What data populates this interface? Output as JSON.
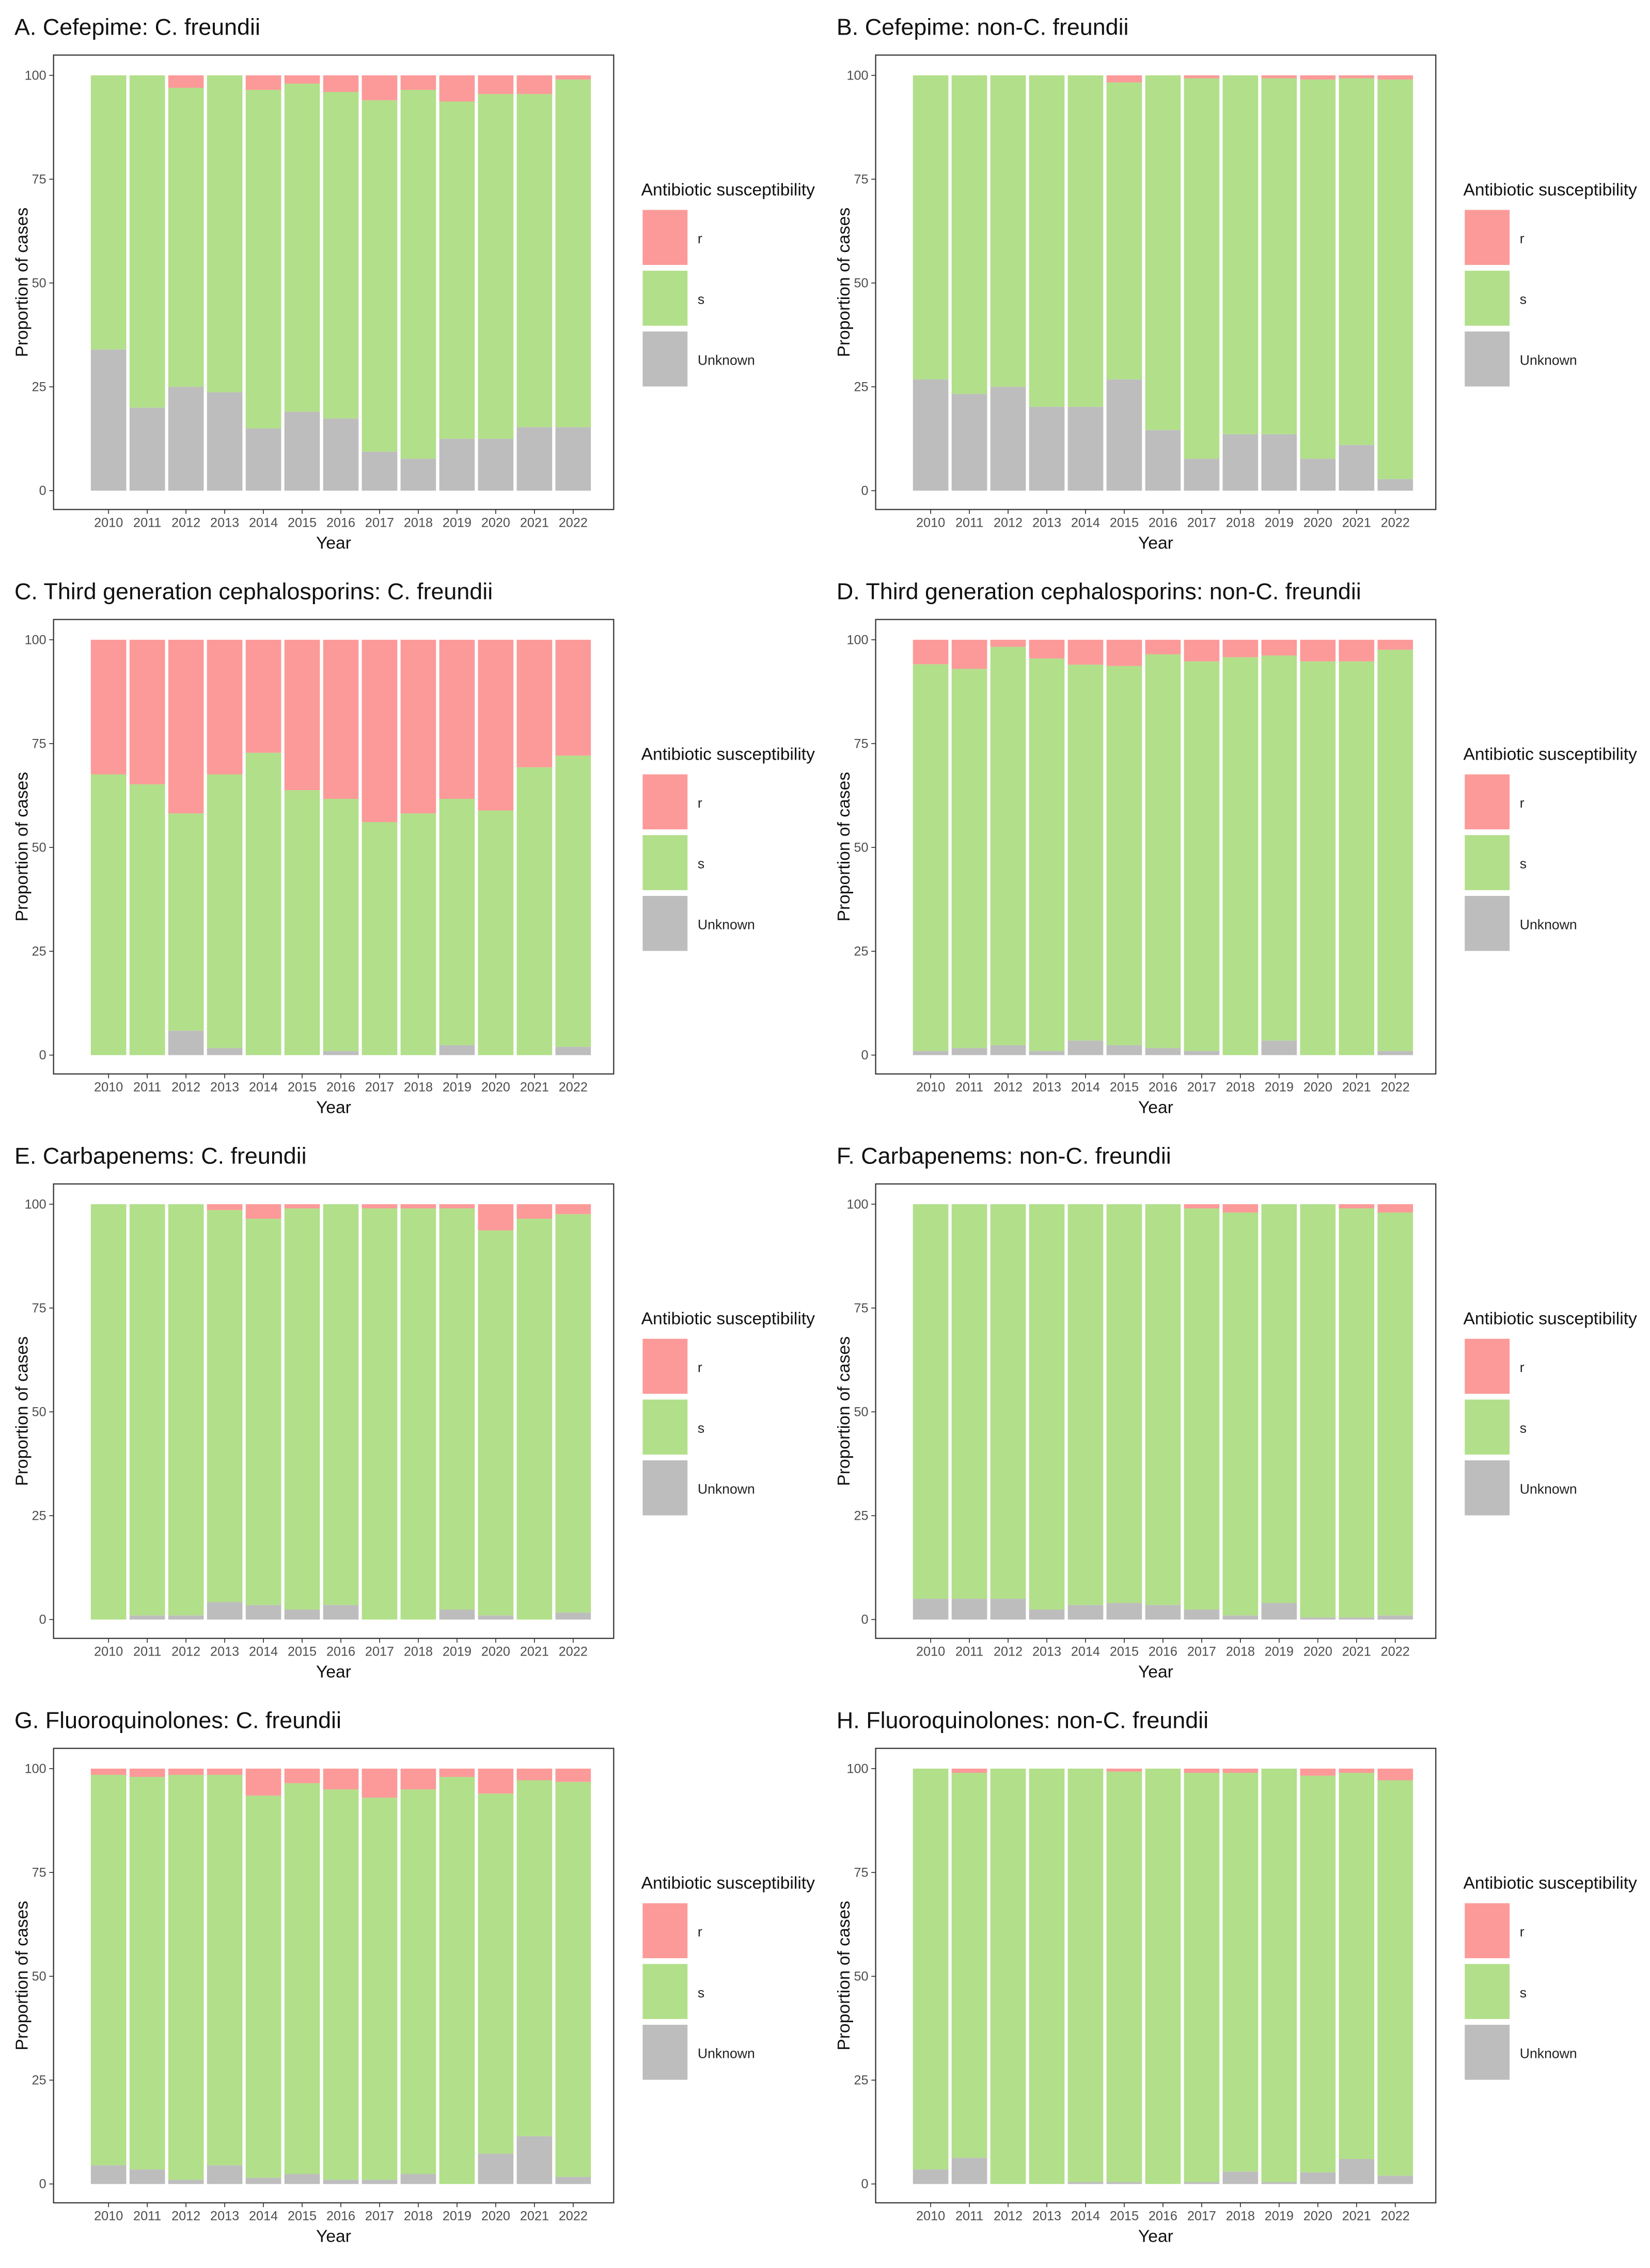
{
  "colors": {
    "r": "#FB9A99",
    "s": "#B2DF8A",
    "Unknown": "#BDBDBD",
    "frame": "#333333"
  },
  "chart_data": [
    {
      "type": "bar",
      "stacked": true,
      "title": "A. Cefepime: C. freundii",
      "xlabel": "Year",
      "ylabel": "Proportion of cases",
      "ylim": [
        0,
        100
      ],
      "yticks": [
        "0",
        "25",
        "50",
        "75",
        "100"
      ],
      "categories": [
        "2010",
        "2011",
        "2012",
        "2013",
        "2014",
        "2015",
        "2016",
        "2017",
        "2018",
        "2019",
        "2020",
        "2021",
        "2022"
      ],
      "legend": {
        "title": "Antibiotic susceptibility",
        "entries": [
          "r",
          "s",
          "Unknown"
        ],
        "placement": "right"
      },
      "series": [
        {
          "name": "Unknown",
          "values": [
            34,
            20,
            25,
            23.7,
            15,
            19,
            17.4,
            9.4,
            7.7,
            12.5,
            12.5,
            15.3,
            15.3
          ]
        },
        {
          "name": "s",
          "values": [
            66,
            80,
            72,
            76.3,
            81.5,
            79,
            78.6,
            84.6,
            88.8,
            81.2,
            83,
            80.2,
            83.7
          ]
        },
        {
          "name": "r",
          "values": [
            0,
            0,
            3,
            0,
            3.5,
            2,
            4,
            6,
            3.5,
            6.3,
            4.5,
            4.5,
            1
          ]
        }
      ]
    },
    {
      "type": "bar",
      "stacked": true,
      "title": "B. Cefepime: non-C. freundii",
      "xlabel": "Year",
      "ylabel": "Proportion of cases",
      "ylim": [
        0,
        100
      ],
      "yticks": [
        "0",
        "25",
        "50",
        "75",
        "100"
      ],
      "categories": [
        "2010",
        "2011",
        "2012",
        "2013",
        "2014",
        "2015",
        "2016",
        "2017",
        "2018",
        "2019",
        "2020",
        "2021",
        "2022"
      ],
      "legend": {
        "title": "Antibiotic susceptibility",
        "entries": [
          "r",
          "s",
          "Unknown"
        ],
        "placement": "right"
      },
      "series": [
        {
          "name": "Unknown",
          "values": [
            26.8,
            23.3,
            25,
            20.2,
            20.2,
            26.8,
            14.6,
            7.7,
            13.6,
            13.6,
            7.7,
            11,
            2.8
          ]
        },
        {
          "name": "s",
          "values": [
            73.2,
            76.7,
            75,
            79.8,
            79.8,
            71.5,
            85.4,
            91.6,
            86.4,
            85.7,
            91.3,
            88.3,
            96.2
          ]
        },
        {
          "name": "r",
          "values": [
            0,
            0,
            0,
            0,
            0,
            1.7,
            0,
            0.7,
            0,
            0.7,
            1,
            0.7,
            1
          ]
        }
      ]
    },
    {
      "type": "bar",
      "stacked": true,
      "title": "C. Third generation cephalosporins: C. freundii",
      "xlabel": "Year",
      "ylabel": "Proportion of cases",
      "ylim": [
        0,
        100
      ],
      "yticks": [
        "0",
        "25",
        "50",
        "75",
        "100"
      ],
      "categories": [
        "2010",
        "2011",
        "2012",
        "2013",
        "2014",
        "2015",
        "2016",
        "2017",
        "2018",
        "2019",
        "2020",
        "2021",
        "2022"
      ],
      "legend": {
        "title": "Antibiotic susceptibility",
        "entries": [
          "r",
          "s",
          "Unknown"
        ],
        "placement": "right"
      },
      "series": [
        {
          "name": "Unknown",
          "values": [
            0,
            0,
            5.9,
            1.7,
            0,
            0,
            1,
            0,
            0,
            2.4,
            0,
            0,
            2
          ]
        },
        {
          "name": "s",
          "values": [
            67.6,
            65.2,
            52.3,
            65.9,
            72.8,
            63.8,
            60.7,
            56.1,
            58.2,
            59.3,
            58.9,
            69.3,
            70.1
          ]
        },
        {
          "name": "r",
          "values": [
            32.4,
            34.8,
            41.8,
            32.4,
            27.2,
            36.2,
            38.3,
            43.9,
            41.8,
            38.3,
            41.1,
            30.7,
            27.9
          ]
        }
      ]
    },
    {
      "type": "bar",
      "stacked": true,
      "title": "D. Third generation cephalosporins: non-C. freundii",
      "xlabel": "Year",
      "ylabel": "Proportion of cases",
      "ylim": [
        0,
        100
      ],
      "yticks": [
        "0",
        "25",
        "50",
        "75",
        "100"
      ],
      "categories": [
        "2010",
        "2011",
        "2012",
        "2013",
        "2014",
        "2015",
        "2016",
        "2017",
        "2018",
        "2019",
        "2020",
        "2021",
        "2022"
      ],
      "legend": {
        "title": "Antibiotic susceptibility",
        "entries": [
          "r",
          "s",
          "Unknown"
        ],
        "placement": "right"
      },
      "series": [
        {
          "name": "Unknown",
          "values": [
            1,
            1.7,
            2.4,
            1,
            3.5,
            2.4,
            1.7,
            1,
            0,
            3.5,
            0,
            0,
            1
          ]
        },
        {
          "name": "s",
          "values": [
            93.1,
            91.3,
            95.9,
            94.5,
            90.5,
            91.3,
            94.8,
            93.8,
            95.8,
            92.7,
            94.8,
            94.8,
            96.6
          ]
        },
        {
          "name": "r",
          "values": [
            5.9,
            7,
            1.7,
            4.5,
            6,
            6.3,
            3.5,
            5.2,
            4.2,
            3.8,
            5.2,
            5.2,
            2.4
          ]
        }
      ]
    },
    {
      "type": "bar",
      "stacked": true,
      "title": "E. Carbapenems: C. freundii",
      "xlabel": "Year",
      "ylabel": "Proportion of cases",
      "ylim": [
        0,
        100
      ],
      "yticks": [
        "0",
        "25",
        "50",
        "75",
        "100"
      ],
      "categories": [
        "2010",
        "2011",
        "2012",
        "2013",
        "2014",
        "2015",
        "2016",
        "2017",
        "2018",
        "2019",
        "2020",
        "2021",
        "2022"
      ],
      "legend": {
        "title": "Antibiotic susceptibility",
        "entries": [
          "r",
          "s",
          "Unknown"
        ],
        "placement": "right"
      },
      "series": [
        {
          "name": "Unknown",
          "values": [
            0,
            1,
            1,
            4.2,
            3.5,
            2.4,
            3.5,
            0,
            0,
            2.4,
            1,
            0,
            1.7
          ]
        },
        {
          "name": "s",
          "values": [
            100,
            99,
            99,
            94.4,
            93,
            96.6,
            96.5,
            99,
            99,
            96.6,
            92.7,
            96.5,
            95.9
          ]
        },
        {
          "name": "r",
          "values": [
            0,
            0,
            0,
            1.4,
            3.5,
            1,
            0,
            1,
            1,
            1,
            6.3,
            3.5,
            2.4
          ]
        }
      ]
    },
    {
      "type": "bar",
      "stacked": true,
      "title": "F. Carbapenems: non-C. freundii",
      "xlabel": "Year",
      "ylabel": "Proportion of cases",
      "ylim": [
        0,
        100
      ],
      "yticks": [
        "0",
        "25",
        "50",
        "75",
        "100"
      ],
      "categories": [
        "2010",
        "2011",
        "2012",
        "2013",
        "2014",
        "2015",
        "2016",
        "2017",
        "2018",
        "2019",
        "2020",
        "2021",
        "2022"
      ],
      "legend": {
        "title": "Antibiotic susceptibility",
        "entries": [
          "r",
          "s",
          "Unknown"
        ],
        "placement": "right"
      },
      "series": [
        {
          "name": "Unknown",
          "values": [
            5,
            5,
            5,
            2.4,
            3.5,
            4,
            3.5,
            2.4,
            1,
            4,
            0.5,
            0.5,
            1
          ]
        },
        {
          "name": "s",
          "values": [
            95,
            95,
            95,
            97.6,
            96.5,
            96,
            96.5,
            96.6,
            97,
            96,
            99.5,
            98.5,
            97
          ]
        },
        {
          "name": "r",
          "values": [
            0,
            0,
            0,
            0,
            0,
            0,
            0,
            1,
            2,
            0,
            0,
            1,
            2
          ]
        }
      ]
    },
    {
      "type": "bar",
      "stacked": true,
      "title": "G. Fluoroquinolones: C. freundii",
      "xlabel": "Year",
      "ylabel": "Proportion of cases",
      "ylim": [
        0,
        100
      ],
      "yticks": [
        "0",
        "25",
        "50",
        "75",
        "100"
      ],
      "categories": [
        "2010",
        "2011",
        "2012",
        "2013",
        "2014",
        "2015",
        "2016",
        "2017",
        "2018",
        "2019",
        "2020",
        "2021",
        "2022"
      ],
      "legend": {
        "title": "Antibiotic susceptibility",
        "entries": [
          "r",
          "s",
          "Unknown"
        ],
        "placement": "right"
      },
      "series": [
        {
          "name": "Unknown",
          "values": [
            4.5,
            3.5,
            1,
            4.5,
            1.5,
            2.4,
            1,
            1,
            2.4,
            0,
            7.3,
            11.5,
            1.7
          ]
        },
        {
          "name": "s",
          "values": [
            94,
            94.5,
            97.5,
            94,
            92,
            94.1,
            94,
            92,
            92.6,
            98,
            86.7,
            85.7,
            95.1
          ]
        },
        {
          "name": "r",
          "values": [
            1.5,
            2,
            1.5,
            1.5,
            6.5,
            3.5,
            5,
            7,
            5,
            2,
            6,
            2.8,
            3.2
          ]
        }
      ]
    },
    {
      "type": "bar",
      "stacked": true,
      "title": "H. Fluoroquinolones: non-C. freundii",
      "xlabel": "Year",
      "ylabel": "Proportion of cases",
      "ylim": [
        0,
        100
      ],
      "yticks": [
        "0",
        "25",
        "50",
        "75",
        "100"
      ],
      "categories": [
        "2010",
        "2011",
        "2012",
        "2013",
        "2014",
        "2015",
        "2016",
        "2017",
        "2018",
        "2019",
        "2020",
        "2021",
        "2022"
      ],
      "legend": {
        "title": "Antibiotic susceptibility",
        "entries": [
          "r",
          "s",
          "Unknown"
        ],
        "placement": "right"
      },
      "series": [
        {
          "name": "Unknown",
          "values": [
            3.5,
            6.3,
            0,
            0,
            0.5,
            0.5,
            0,
            0.5,
            3,
            0.5,
            2.8,
            6,
            2
          ]
        },
        {
          "name": "s",
          "values": [
            96.5,
            92.7,
            100,
            100,
            99.5,
            98.8,
            100,
            98.5,
            96,
            99.5,
            95.5,
            93,
            95.2
          ]
        },
        {
          "name": "r",
          "values": [
            0,
            1,
            0,
            0,
            0,
            0.7,
            0,
            1,
            1,
            0,
            1.7,
            1,
            2.8
          ]
        }
      ]
    }
  ]
}
